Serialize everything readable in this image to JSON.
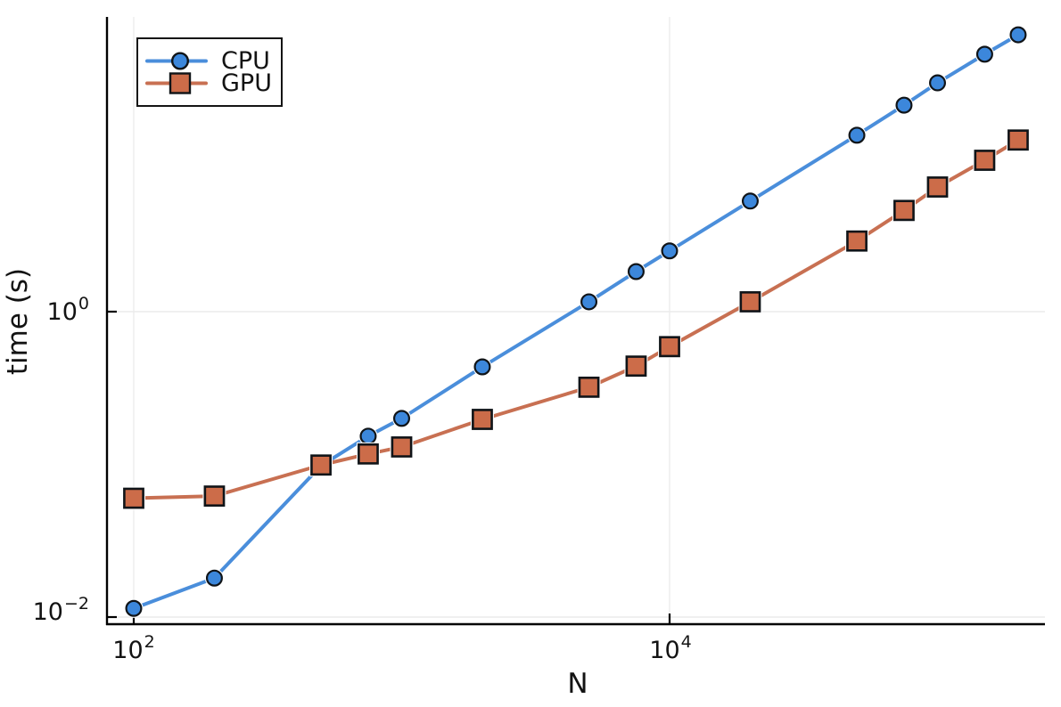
{
  "chart_data": {
    "type": "line",
    "title": "",
    "xlabel": "N",
    "ylabel": "time (s)",
    "x_scale": "log10",
    "y_scale": "log10",
    "xlim": [
      79,
      252000
    ],
    "ylim": [
      0.0089,
      85
    ],
    "grid": true,
    "legend_position": "top-left",
    "x_ticks": [
      {
        "text": "10",
        "sup": "2",
        "value": 100
      },
      {
        "text": "10",
        "sup": "4",
        "value": 10000
      }
    ],
    "y_ticks": [
      {
        "text": "10",
        "sup": "−2",
        "value": 0.01
      },
      {
        "text": "10",
        "sup": "0",
        "value": 1
      }
    ],
    "x": [
      100,
      200,
      500,
      750,
      1000,
      2000,
      5000,
      7500,
      10000,
      20000,
      50000,
      75000,
      100000,
      150000,
      200000
    ],
    "series": [
      {
        "name": "CPU",
        "marker": "circle",
        "color": "#4a8edb",
        "marker_color": "#3c87db",
        "values": [
          0.0114,
          0.018,
          0.098,
          0.153,
          0.2,
          0.435,
          1.16,
          1.83,
          2.5,
          5.3,
          14.3,
          22.5,
          31.5,
          48.5,
          65
        ]
      },
      {
        "name": "GPU",
        "marker": "square",
        "color": "#c87052",
        "marker_color": "#cc6c49",
        "values": [
          0.06,
          0.062,
          0.099,
          0.117,
          0.13,
          0.197,
          0.32,
          0.44,
          0.59,
          1.16,
          2.9,
          4.6,
          6.55,
          9.8,
          13.3
        ]
      }
    ],
    "marker_stroke_color": "#101418",
    "axis_color": "#000000",
    "grid_color": "#ececec"
  }
}
